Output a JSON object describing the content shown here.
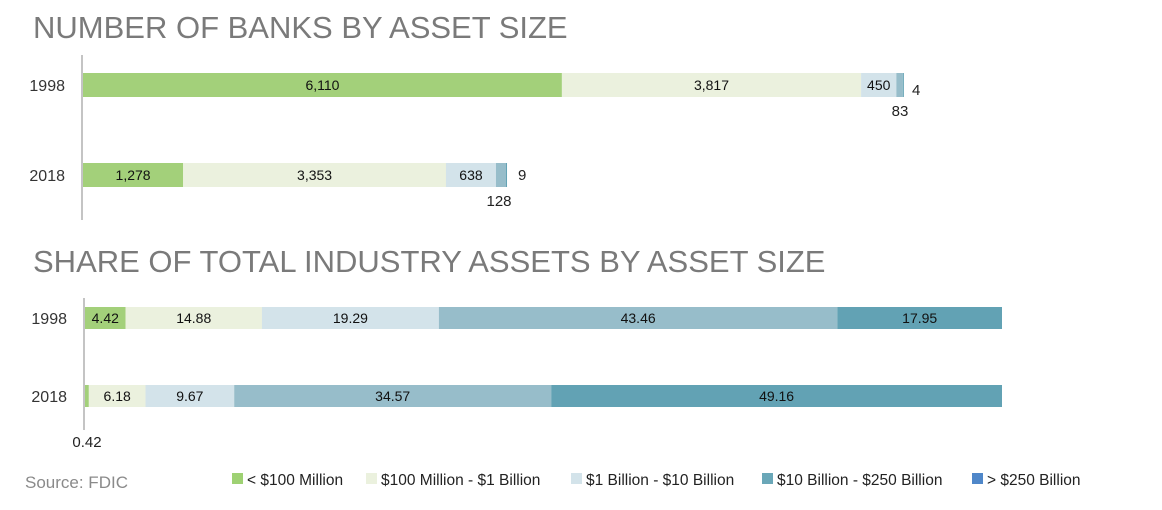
{
  "colors": [
    "#a3d07a",
    "#ebf1de",
    "#d3e3ea",
    "#97bdca",
    "#62a2b4"
  ],
  "legend_colors": [
    "#9ed173",
    "#ebf1de",
    "#d3e3ea",
    "#6aa7b8",
    "#4f87c9"
  ],
  "legend": [
    "< $100 Million",
    "$100 Million - $1 Billion",
    "$1 Billion - $10 Billion",
    "$10 Billion - $250 Billion",
    "> $250 Billion"
  ],
  "source": "Source:  FDIC",
  "chart_data": [
    {
      "type": "bar",
      "orientation": "horizontal",
      "stacked": true,
      "title": "NUMBER OF BANKS BY ASSET SIZE",
      "categories": [
        "1998",
        "2018"
      ],
      "series": [
        {
          "name": "< $100 Million",
          "values": [
            6110,
            1278
          ],
          "labels": [
            "6,110",
            "1,278"
          ]
        },
        {
          "name": "$100 Million - $1 Billion",
          "values": [
            3817,
            3353
          ],
          "labels": [
            "3,817",
            "3,353"
          ]
        },
        {
          "name": "$1 Billion - $10 Billion",
          "values": [
            450,
            638
          ],
          "labels": [
            "450",
            "638"
          ]
        },
        {
          "name": "$10 Billion - $250 Billion",
          "values": [
            83,
            128
          ],
          "labels": [
            "83",
            "128"
          ]
        },
        {
          "name": "> $250 Billion",
          "values": [
            4,
            9
          ],
          "labels": [
            "4",
            "9"
          ]
        }
      ]
    },
    {
      "type": "bar",
      "orientation": "horizontal",
      "stacked": true,
      "title": "SHARE OF TOTAL INDUSTRY ASSETS BY ASSET SIZE",
      "categories": [
        "1998",
        "2018"
      ],
      "series": [
        {
          "name": "< $100 Million",
          "values": [
            4.42,
            0.42
          ],
          "labels": [
            "4.42",
            "0.42"
          ]
        },
        {
          "name": "$100 Million - $1 Billion",
          "values": [
            14.88,
            6.18
          ],
          "labels": [
            "14.88",
            "6.18"
          ]
        },
        {
          "name": "$1 Billion - $10 Billion",
          "values": [
            19.29,
            9.67
          ],
          "labels": [
            "19.29",
            "9.67"
          ]
        },
        {
          "name": "$10 Billion - $250 Billion",
          "values": [
            43.46,
            34.57
          ],
          "labels": [
            "43.46",
            "34.57"
          ]
        },
        {
          "name": "> $250 Billion",
          "values": [
            17.95,
            49.16
          ],
          "labels": [
            "17.95",
            "49.16"
          ]
        }
      ]
    }
  ]
}
